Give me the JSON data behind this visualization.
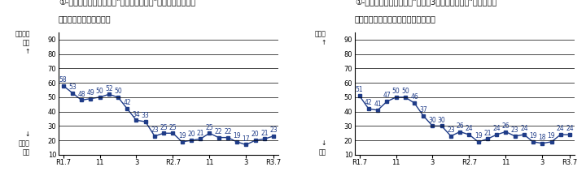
{
  "left_title_1": "①-ア　国内の主食用米の\"現在の需給動向\"について、どう考",
  "left_title_2": "えていますか。（全体）",
  "right_title_1": "①-イ　国内の主食用米の\"向こう3ヶ月の需給動向\"について、",
  "right_title_2": "どうなると考えていますか。（全体）",
  "left_ylabel_top": "締まって\nいる\n↑",
  "left_ylabel_bottom": "↓\n締んで\nいる",
  "right_ylabel_top": "締まる\n↑",
  "right_ylabel_bottom": "↓\n締む",
  "xtick_labels": [
    "R1.7",
    "11",
    "3",
    "R2.7",
    "11",
    "3",
    "R3.7"
  ],
  "x_positions": [
    0,
    1,
    2,
    3,
    4,
    5,
    6,
    7,
    8,
    9,
    10,
    11,
    12,
    13,
    14,
    15,
    16,
    17,
    18,
    19,
    20,
    21,
    22,
    23
  ],
  "xtick_pos": [
    0,
    4,
    8,
    12,
    16,
    20,
    23
  ],
  "left_values": [
    58,
    53,
    48,
    49,
    50,
    52,
    50,
    42,
    34,
    33,
    23,
    25,
    25,
    19,
    20,
    21,
    25,
    22,
    22,
    19,
    17,
    20,
    21,
    23
  ],
  "right_values": [
    51,
    42,
    41,
    47,
    50,
    50,
    46,
    37,
    30,
    30,
    23,
    26,
    24,
    19,
    21,
    24,
    26,
    23,
    24,
    19,
    18,
    19,
    24,
    24
  ],
  "line_color": "#1f3c88",
  "marker": "s",
  "marker_size": 2.5,
  "ylim": [
    10,
    95
  ],
  "yticks": [
    10,
    20,
    30,
    40,
    50,
    60,
    70,
    80,
    90
  ],
  "background_color": "#ffffff",
  "grid_color": "#000000",
  "font_size_title": 7.0,
  "font_size_tick": 6.0,
  "font_size_data": 5.5,
  "font_size_ylabel": 5.5
}
